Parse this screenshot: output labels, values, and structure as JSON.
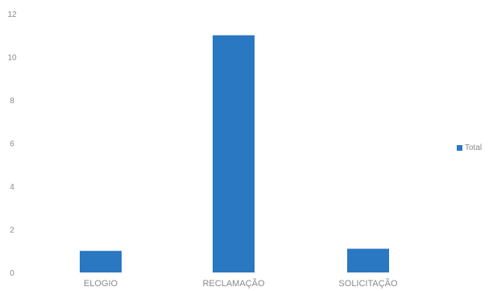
{
  "chart_data": {
    "type": "bar",
    "title": "",
    "xlabel": "",
    "ylabel": "",
    "categories": [
      "ELOGIO",
      "RECLAMAÇÃO",
      "SOLICITAÇÃO"
    ],
    "series": [
      {
        "name": "Total",
        "values": [
          1,
          11,
          1.1
        ]
      }
    ],
    "ylim": [
      0,
      12
    ],
    "yticks": [
      "0",
      "2",
      "4",
      "6",
      "8",
      "10",
      "12"
    ],
    "grid": false,
    "legend_position": "right",
    "bar_color": "#2a77c2"
  }
}
